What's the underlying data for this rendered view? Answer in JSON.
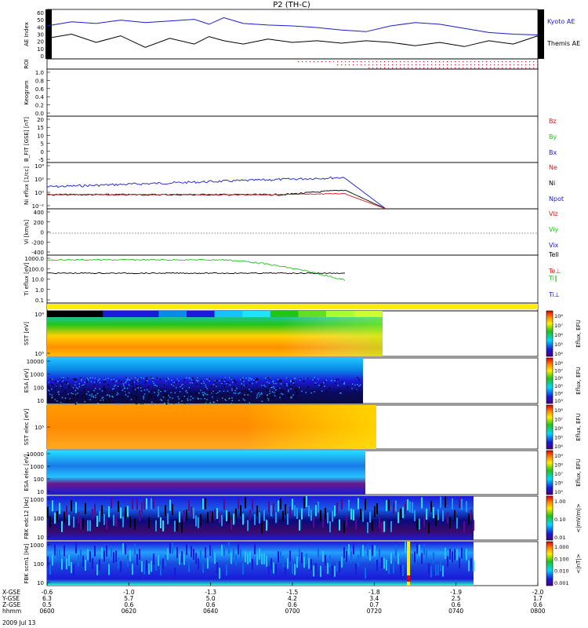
{
  "title": "P2 (TH-C)",
  "date_label": "2009 Jul 13",
  "colors": {
    "blue": "#1a1ad8",
    "black": "#000000",
    "red": "#d81a1a",
    "green": "#22c41a",
    "yellow": "#ffee00",
    "frame": "#000000"
  },
  "chart_data": [
    {
      "type": "line",
      "panel": "ae",
      "ylabel": "AE Index",
      "yticks": [
        "60",
        "50",
        "40",
        "30",
        "20",
        "10",
        "0"
      ],
      "ylim": [
        0,
        60
      ],
      "series": [
        {
          "name": "Kyoto AE",
          "color": "#1a1ad8",
          "x": [
            0,
            0.05,
            0.1,
            0.15,
            0.2,
            0.25,
            0.3,
            0.33,
            0.36,
            0.4,
            0.45,
            0.5,
            0.55,
            0.6,
            0.65,
            0.7,
            0.75,
            0.8,
            0.85,
            0.9,
            0.95,
            1.0
          ],
          "y": [
            40,
            45,
            43,
            47,
            44,
            46,
            48,
            42,
            50,
            43,
            41,
            40,
            38,
            35,
            33,
            40,
            44,
            42,
            37,
            32,
            30,
            29
          ]
        },
        {
          "name": "Themis AE",
          "color": "#000000",
          "x": [
            0,
            0.05,
            0.1,
            0.15,
            0.2,
            0.25,
            0.3,
            0.33,
            0.36,
            0.4,
            0.45,
            0.5,
            0.55,
            0.6,
            0.65,
            0.7,
            0.75,
            0.8,
            0.85,
            0.9,
            0.95,
            1.0
          ],
          "y": [
            25,
            30,
            20,
            28,
            14,
            25,
            18,
            27,
            22,
            18,
            24,
            20,
            22,
            19,
            22,
            20,
            16,
            20,
            15,
            22,
            18,
            28
          ]
        }
      ]
    },
    {
      "type": "line",
      "panel": "roi",
      "ylabel": "ROI"
    },
    {
      "type": "line",
      "panel": "keogram",
      "ylabel": "Keogram",
      "yticks": [
        "1.0",
        "0.8",
        "0.6",
        "0.4",
        "0.2",
        "0.0"
      ]
    },
    {
      "type": "line",
      "panel": "bfit",
      "ylabel": "B_FIT [GSE] [nT]",
      "yticks": [
        "20",
        "15",
        "10",
        "5",
        "0",
        "-5"
      ],
      "legend": [
        {
          "name": "Bz",
          "color": "#d81a1a"
        },
        {
          "name": "By",
          "color": "#22c41a"
        },
        {
          "name": "Bx",
          "color": "#1a1ad8"
        }
      ]
    },
    {
      "type": "line",
      "panel": "ni",
      "ylabel": "Ni eflux [1/cc]",
      "yticks": [
        "10⁴",
        "10²",
        "10⁰",
        "10⁻²"
      ],
      "legend": [
        {
          "name": "Ne",
          "color": "#d81a1a"
        },
        {
          "name": "Ni",
          "color": "#000000"
        },
        {
          "name": "Npot",
          "color": "#1a1ad8"
        }
      ]
    },
    {
      "type": "line",
      "panel": "vi",
      "ylabel": "Vi [km/s]",
      "yticks": [
        "400",
        "200",
        "0",
        "-200",
        "-400"
      ],
      "legend": [
        {
          "name": "Viz",
          "color": "#d81a1a"
        },
        {
          "name": "Viy",
          "color": "#22c41a"
        },
        {
          "name": "Vix",
          "color": "#1a1ad8"
        }
      ]
    },
    {
      "type": "line",
      "panel": "ti",
      "ylabel": "Ti eflux [eV]",
      "yticks": [
        "1000.0",
        "100.0",
        "10.0",
        "1.0",
        "0.1"
      ],
      "legend": [
        {
          "name": "Tell",
          "color": "#000000"
        },
        {
          "name": "Te⊥",
          "color": "#d81a1a"
        },
        {
          "name": "Ti∥",
          "color": "#22c41a"
        },
        {
          "name": "Ti⊥",
          "color": "#1a1ad8"
        }
      ]
    },
    {
      "type": "heatmap",
      "panel": "sst_i",
      "ylabel": "SST [eV]",
      "yticks": [
        "10⁶",
        "10⁵"
      ],
      "cbar_label": "Eflux, EFU",
      "cbar_ticks": [
        "10⁸",
        "10⁷",
        "10⁶",
        "10⁵",
        "10⁴"
      ]
    },
    {
      "type": "heatmap",
      "panel": "esa_i",
      "ylabel": "ESA [eV]",
      "yticks": [
        "10000",
        "1000",
        "100",
        "10"
      ],
      "cbar_label": "Eflux, EFU",
      "cbar_ticks": [
        "10⁸",
        "10⁷",
        "10⁶",
        "10⁵",
        "10⁴",
        "10³"
      ]
    },
    {
      "type": "heatmap",
      "panel": "sst_e",
      "ylabel": "SST elec [eV]",
      "yticks": [
        "10⁵"
      ],
      "cbar_label": "Eflux, EFU",
      "cbar_ticks": [
        "10⁸",
        "10⁷",
        "10⁶",
        "10⁵",
        "10⁴"
      ]
    },
    {
      "type": "heatmap",
      "panel": "esa_e",
      "ylabel": "ESA elec [eV]",
      "yticks": [
        "10000",
        "1000",
        "100",
        "10"
      ],
      "cbar_label": "Eflux, EFU",
      "cbar_ticks": [
        "10⁹",
        "10⁸",
        "10⁷",
        "10⁶",
        "10⁵"
      ]
    },
    {
      "type": "heatmap",
      "panel": "fbk_e",
      "ylabel": "FBK edc12 [Hz]",
      "yticks": [
        "1000",
        "100",
        "10"
      ],
      "cbar_label": "<|mV/m|>",
      "cbar_ticks": [
        "1.00",
        "0.10",
        "0.01"
      ]
    },
    {
      "type": "heatmap",
      "panel": "fbk_b",
      "ylabel": "FBK scm1 [Hz]",
      "yticks": [
        "1000",
        "100",
        "10"
      ],
      "cbar_label": "<|nT|>",
      "cbar_ticks": [
        "1.000",
        "0.100",
        "0.010",
        "0.001"
      ]
    }
  ],
  "xaxis": {
    "rows": [
      {
        "label": "X-GSE",
        "values": [
          "-0.6",
          "-1.0",
          "-1.3",
          "-1.5",
          "-1.8",
          "-1.9",
          "-2.0"
        ]
      },
      {
        "label": "Y-GSE",
        "values": [
          "6.3",
          "5.7",
          "5.0",
          "4.2",
          "3.4",
          "2.5",
          "1.7"
        ]
      },
      {
        "label": "Z-GSE",
        "values": [
          "0.5",
          "0.6",
          "0.6",
          "0.6",
          "0.7",
          "0.6",
          "0.6"
        ]
      },
      {
        "label": "hhmm",
        "values": [
          "0600",
          "0620",
          "0640",
          "0700",
          "0720",
          "0740",
          "0800"
        ]
      }
    ]
  }
}
